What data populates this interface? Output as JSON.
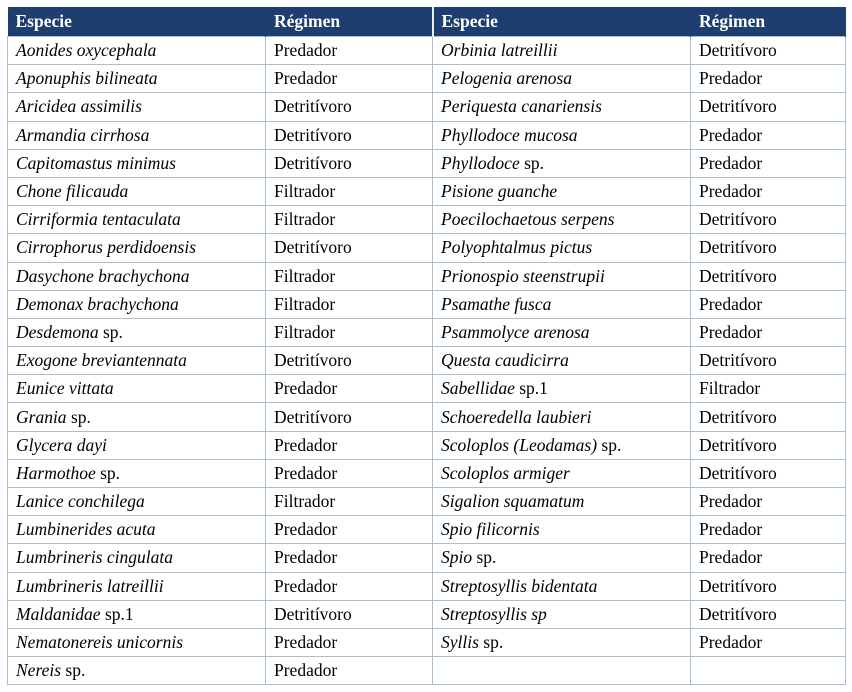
{
  "table": {
    "header": [
      "Especie",
      "Régimen",
      "Especie",
      "Régimen"
    ],
    "left": [
      {
        "species": "Aonides oxycephala",
        "regimen": "Predador"
      },
      {
        "species": "Aponuphis bilineata",
        "regimen": "Predador"
      },
      {
        "species": "Aricidea assimilis",
        "regimen": "Detritívoro"
      },
      {
        "species": "Armandia cirrhosa",
        "regimen": "Detritívoro"
      },
      {
        "species": "Capitomastus minimus",
        "regimen": "Detritívoro"
      },
      {
        "species": "Chone filicauda",
        "regimen": "Filtrador"
      },
      {
        "species": "Cirriformia tentaculata",
        "regimen": "Filtrador"
      },
      {
        "species": "Cirrophorus perdidoensis",
        "regimen": "Detritívoro"
      },
      {
        "species": "Dasychone brachychona",
        "regimen": "Filtrador"
      },
      {
        "species": "Demonax brachychona",
        "regimen": "Filtrador"
      },
      {
        "species": "Desdemona",
        "suffix": "sp.",
        "regimen": "Filtrador"
      },
      {
        "species": "Exogone breviantennata",
        "regimen": "Detritívoro"
      },
      {
        "species": "Eunice vittata",
        "regimen": "Predador"
      },
      {
        "species": "Grania",
        "suffix": "sp.",
        "regimen": "Detritívoro"
      },
      {
        "species": "Glycera dayi",
        "regimen": "Predador"
      },
      {
        "species": "Harmothoe",
        "suffix": "sp.",
        "regimen": "Predador"
      },
      {
        "species": "Lanice conchilega",
        "regimen": "Filtrador"
      },
      {
        "species": "Lumbinerides acuta",
        "regimen": "Predador"
      },
      {
        "species": "Lumbrineris cingulata",
        "regimen": "Predador"
      },
      {
        "species": "Lumbrineris latreillii",
        "regimen": "Predador"
      },
      {
        "species": "Maldanidae",
        "suffix": "sp.1",
        "regimen": "Detritívoro"
      },
      {
        "species": "Nematonereis unicornis",
        "regimen": "Predador"
      },
      {
        "species": "Nereis",
        "suffix": "sp.",
        "regimen": "Predador"
      }
    ],
    "right": [
      {
        "species": "Orbinia latreillii",
        "regimen": "Detritívoro"
      },
      {
        "species": "Pelogenia arenosa",
        "regimen": "Predador"
      },
      {
        "species": "Periquesta canariensis",
        "regimen": "Detritívoro"
      },
      {
        "species": "Phyllodoce mucosa",
        "regimen": "Predador"
      },
      {
        "species": "Phyllodoce",
        "suffix": "sp.",
        "regimen": "Predador"
      },
      {
        "species": "Pisione guanche",
        "regimen": "Predador"
      },
      {
        "species": "Poecilochaetous serpens",
        "regimen": "Detritívoro"
      },
      {
        "species": "Polyophtalmus pictus",
        "regimen": "Detritívoro"
      },
      {
        "species": "Prionospio steenstrupii",
        "regimen": "Detritívoro"
      },
      {
        "species": "Psamathe fusca",
        "regimen": "Predador"
      },
      {
        "species": "Psammolyce arenosa",
        "regimen": "Predador"
      },
      {
        "species": "Questa caudicirra",
        "regimen": "Detritívoro"
      },
      {
        "species": "Sabellidae",
        "suffix": "sp.1",
        "regimen": "Filtrador"
      },
      {
        "species": "Schoeredella laubieri",
        "regimen": "Detritívoro"
      },
      {
        "species": "Scoloplos (Leodamas)",
        "suffix": "sp.",
        "regimen": "Detritívoro"
      },
      {
        "species": "Scoloplos armiger",
        "regimen": "Detritívoro"
      },
      {
        "species": "Sigalion squamatum",
        "regimen": "Predador"
      },
      {
        "species": "Spio filicornis",
        "regimen": "Predador"
      },
      {
        "species": "Spio",
        "suffix": "sp.",
        "regimen": "Predador"
      },
      {
        "species": "Streptosyllis bidentata",
        "regimen": "Detritívoro"
      },
      {
        "species": "Streptosyllis sp",
        "regimen": "Detritívoro"
      },
      {
        "species": "Syllis",
        "suffix": "sp.",
        "regimen": "Predador"
      }
    ]
  }
}
